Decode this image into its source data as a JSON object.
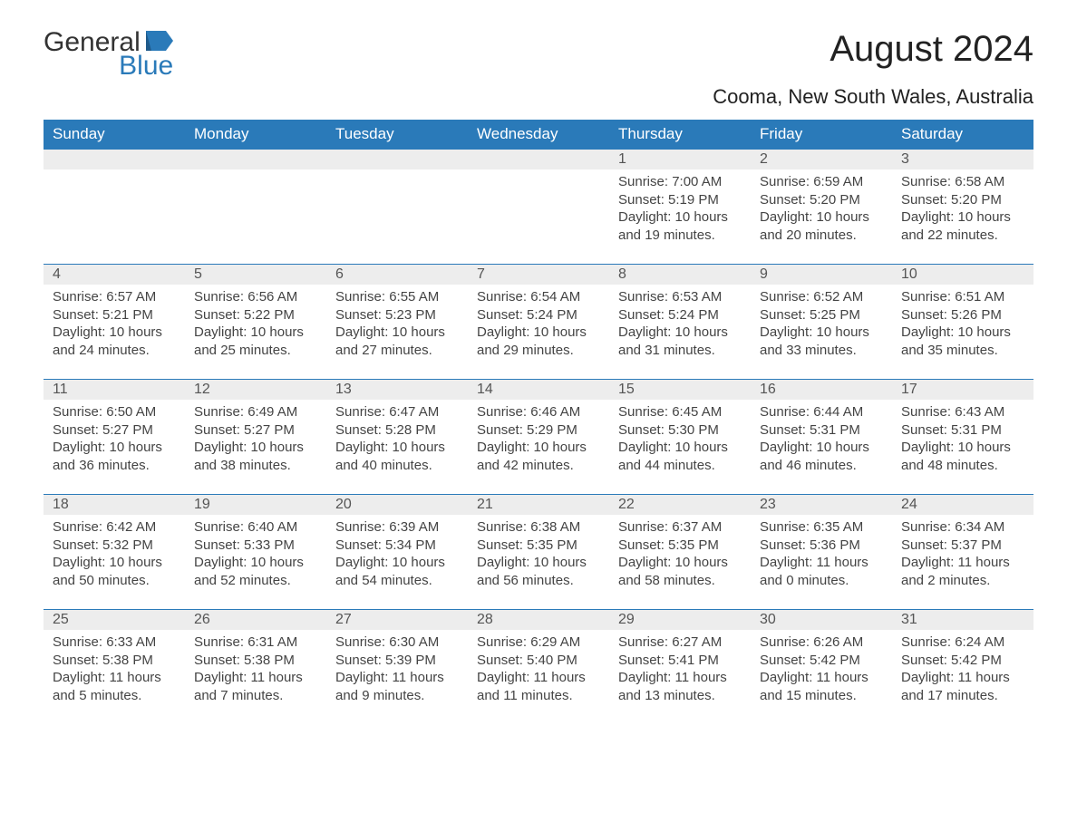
{
  "logo": {
    "text1": "General",
    "text2": "Blue",
    "icon_color": "#2a7ab9"
  },
  "title": "August 2024",
  "subtitle": "Cooma, New South Wales, Australia",
  "colors": {
    "header_bg": "#2a7ab9",
    "header_text": "#ffffff",
    "daynum_bg": "#ededed",
    "border": "#2a7ab9",
    "body_text": "#444444",
    "page_bg": "#ffffff"
  },
  "weekdays": [
    "Sunday",
    "Monday",
    "Tuesday",
    "Wednesday",
    "Thursday",
    "Friday",
    "Saturday"
  ],
  "first_weekday_index": 4,
  "days": [
    {
      "n": 1,
      "sunrise": "7:00 AM",
      "sunset": "5:19 PM",
      "dl_h": 10,
      "dl_m": 19
    },
    {
      "n": 2,
      "sunrise": "6:59 AM",
      "sunset": "5:20 PM",
      "dl_h": 10,
      "dl_m": 20
    },
    {
      "n": 3,
      "sunrise": "6:58 AM",
      "sunset": "5:20 PM",
      "dl_h": 10,
      "dl_m": 22
    },
    {
      "n": 4,
      "sunrise": "6:57 AM",
      "sunset": "5:21 PM",
      "dl_h": 10,
      "dl_m": 24
    },
    {
      "n": 5,
      "sunrise": "6:56 AM",
      "sunset": "5:22 PM",
      "dl_h": 10,
      "dl_m": 25
    },
    {
      "n": 6,
      "sunrise": "6:55 AM",
      "sunset": "5:23 PM",
      "dl_h": 10,
      "dl_m": 27
    },
    {
      "n": 7,
      "sunrise": "6:54 AM",
      "sunset": "5:24 PM",
      "dl_h": 10,
      "dl_m": 29
    },
    {
      "n": 8,
      "sunrise": "6:53 AM",
      "sunset": "5:24 PM",
      "dl_h": 10,
      "dl_m": 31
    },
    {
      "n": 9,
      "sunrise": "6:52 AM",
      "sunset": "5:25 PM",
      "dl_h": 10,
      "dl_m": 33
    },
    {
      "n": 10,
      "sunrise": "6:51 AM",
      "sunset": "5:26 PM",
      "dl_h": 10,
      "dl_m": 35
    },
    {
      "n": 11,
      "sunrise": "6:50 AM",
      "sunset": "5:27 PM",
      "dl_h": 10,
      "dl_m": 36
    },
    {
      "n": 12,
      "sunrise": "6:49 AM",
      "sunset": "5:27 PM",
      "dl_h": 10,
      "dl_m": 38
    },
    {
      "n": 13,
      "sunrise": "6:47 AM",
      "sunset": "5:28 PM",
      "dl_h": 10,
      "dl_m": 40
    },
    {
      "n": 14,
      "sunrise": "6:46 AM",
      "sunset": "5:29 PM",
      "dl_h": 10,
      "dl_m": 42
    },
    {
      "n": 15,
      "sunrise": "6:45 AM",
      "sunset": "5:30 PM",
      "dl_h": 10,
      "dl_m": 44
    },
    {
      "n": 16,
      "sunrise": "6:44 AM",
      "sunset": "5:31 PM",
      "dl_h": 10,
      "dl_m": 46
    },
    {
      "n": 17,
      "sunrise": "6:43 AM",
      "sunset": "5:31 PM",
      "dl_h": 10,
      "dl_m": 48
    },
    {
      "n": 18,
      "sunrise": "6:42 AM",
      "sunset": "5:32 PM",
      "dl_h": 10,
      "dl_m": 50
    },
    {
      "n": 19,
      "sunrise": "6:40 AM",
      "sunset": "5:33 PM",
      "dl_h": 10,
      "dl_m": 52
    },
    {
      "n": 20,
      "sunrise": "6:39 AM",
      "sunset": "5:34 PM",
      "dl_h": 10,
      "dl_m": 54
    },
    {
      "n": 21,
      "sunrise": "6:38 AM",
      "sunset": "5:35 PM",
      "dl_h": 10,
      "dl_m": 56
    },
    {
      "n": 22,
      "sunrise": "6:37 AM",
      "sunset": "5:35 PM",
      "dl_h": 10,
      "dl_m": 58
    },
    {
      "n": 23,
      "sunrise": "6:35 AM",
      "sunset": "5:36 PM",
      "dl_h": 11,
      "dl_m": 0
    },
    {
      "n": 24,
      "sunrise": "6:34 AM",
      "sunset": "5:37 PM",
      "dl_h": 11,
      "dl_m": 2
    },
    {
      "n": 25,
      "sunrise": "6:33 AM",
      "sunset": "5:38 PM",
      "dl_h": 11,
      "dl_m": 5
    },
    {
      "n": 26,
      "sunrise": "6:31 AM",
      "sunset": "5:38 PM",
      "dl_h": 11,
      "dl_m": 7
    },
    {
      "n": 27,
      "sunrise": "6:30 AM",
      "sunset": "5:39 PM",
      "dl_h": 11,
      "dl_m": 9
    },
    {
      "n": 28,
      "sunrise": "6:29 AM",
      "sunset": "5:40 PM",
      "dl_h": 11,
      "dl_m": 11
    },
    {
      "n": 29,
      "sunrise": "6:27 AM",
      "sunset": "5:41 PM",
      "dl_h": 11,
      "dl_m": 13
    },
    {
      "n": 30,
      "sunrise": "6:26 AM",
      "sunset": "5:42 PM",
      "dl_h": 11,
      "dl_m": 15
    },
    {
      "n": 31,
      "sunrise": "6:24 AM",
      "sunset": "5:42 PM",
      "dl_h": 11,
      "dl_m": 17
    }
  ],
  "labels": {
    "sunrise": "Sunrise:",
    "sunset": "Sunset:",
    "daylight": "Daylight:",
    "hours": "hours",
    "and": "and",
    "minutes": "minutes."
  }
}
